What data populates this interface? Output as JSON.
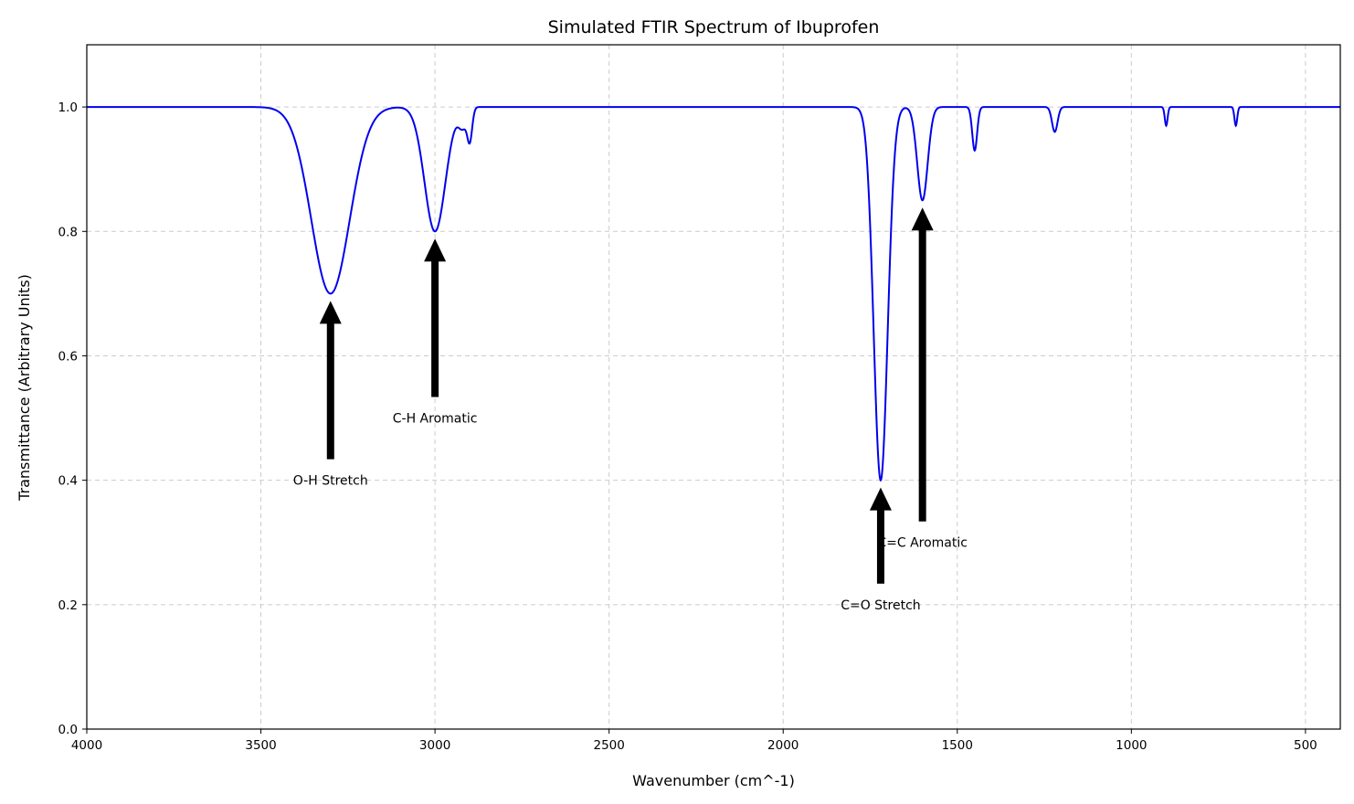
{
  "chart_data": {
    "type": "line",
    "title": "Simulated FTIR Spectrum of Ibuprofen",
    "xlabel": "Wavenumber (cm^-1)",
    "ylabel": "Transmittance (Arbitrary Units)",
    "xlim": [
      4000,
      400
    ],
    "x_reversed": true,
    "ylim": [
      0,
      1.1
    ],
    "xticks": [
      4000,
      3500,
      3000,
      2500,
      2000,
      1500,
      1000,
      500
    ],
    "yticks": [
      0.0,
      0.2,
      0.4,
      0.6,
      0.8,
      1.0
    ],
    "xtick_labels": [
      "4000",
      "3500",
      "3000",
      "2500",
      "2000",
      "1500",
      "1000",
      "500"
    ],
    "ytick_labels": [
      "0.0",
      "0.2",
      "0.4",
      "0.6",
      "0.8",
      "1.0"
    ],
    "grid": true,
    "series": [
      {
        "color": "#0000ee",
        "baseline": 1.0,
        "peaks": [
          {
            "center": 3300,
            "depth": 0.3,
            "width": 55
          },
          {
            "center": 3000,
            "depth": 0.2,
            "width": 30
          },
          {
            "center": 2920,
            "depth": 0.03,
            "width": 12
          },
          {
            "center": 2900,
            "depth": 0.05,
            "width": 7
          },
          {
            "center": 1720,
            "depth": 0.6,
            "width": 20
          },
          {
            "center": 1600,
            "depth": 0.15,
            "width": 15
          },
          {
            "center": 1450,
            "depth": 0.07,
            "width": 7
          },
          {
            "center": 1220,
            "depth": 0.04,
            "width": 8
          },
          {
            "center": 900,
            "depth": 0.03,
            "width": 4
          },
          {
            "center": 700,
            "depth": 0.03,
            "width": 4
          }
        ]
      }
    ],
    "annotations": [
      {
        "text": "O-H Stretch",
        "x": 3300,
        "y": 0.7,
        "text_y": 0.4
      },
      {
        "text": "C-H Aromatic",
        "x": 3000,
        "y": 0.8,
        "text_y": 0.5
      },
      {
        "text": "C=O Stretch",
        "x": 1720,
        "y": 0.4,
        "text_y": 0.2
      },
      {
        "text": "C=C Aromatic",
        "x": 1600,
        "y": 0.85,
        "text_y": 0.3
      }
    ]
  }
}
